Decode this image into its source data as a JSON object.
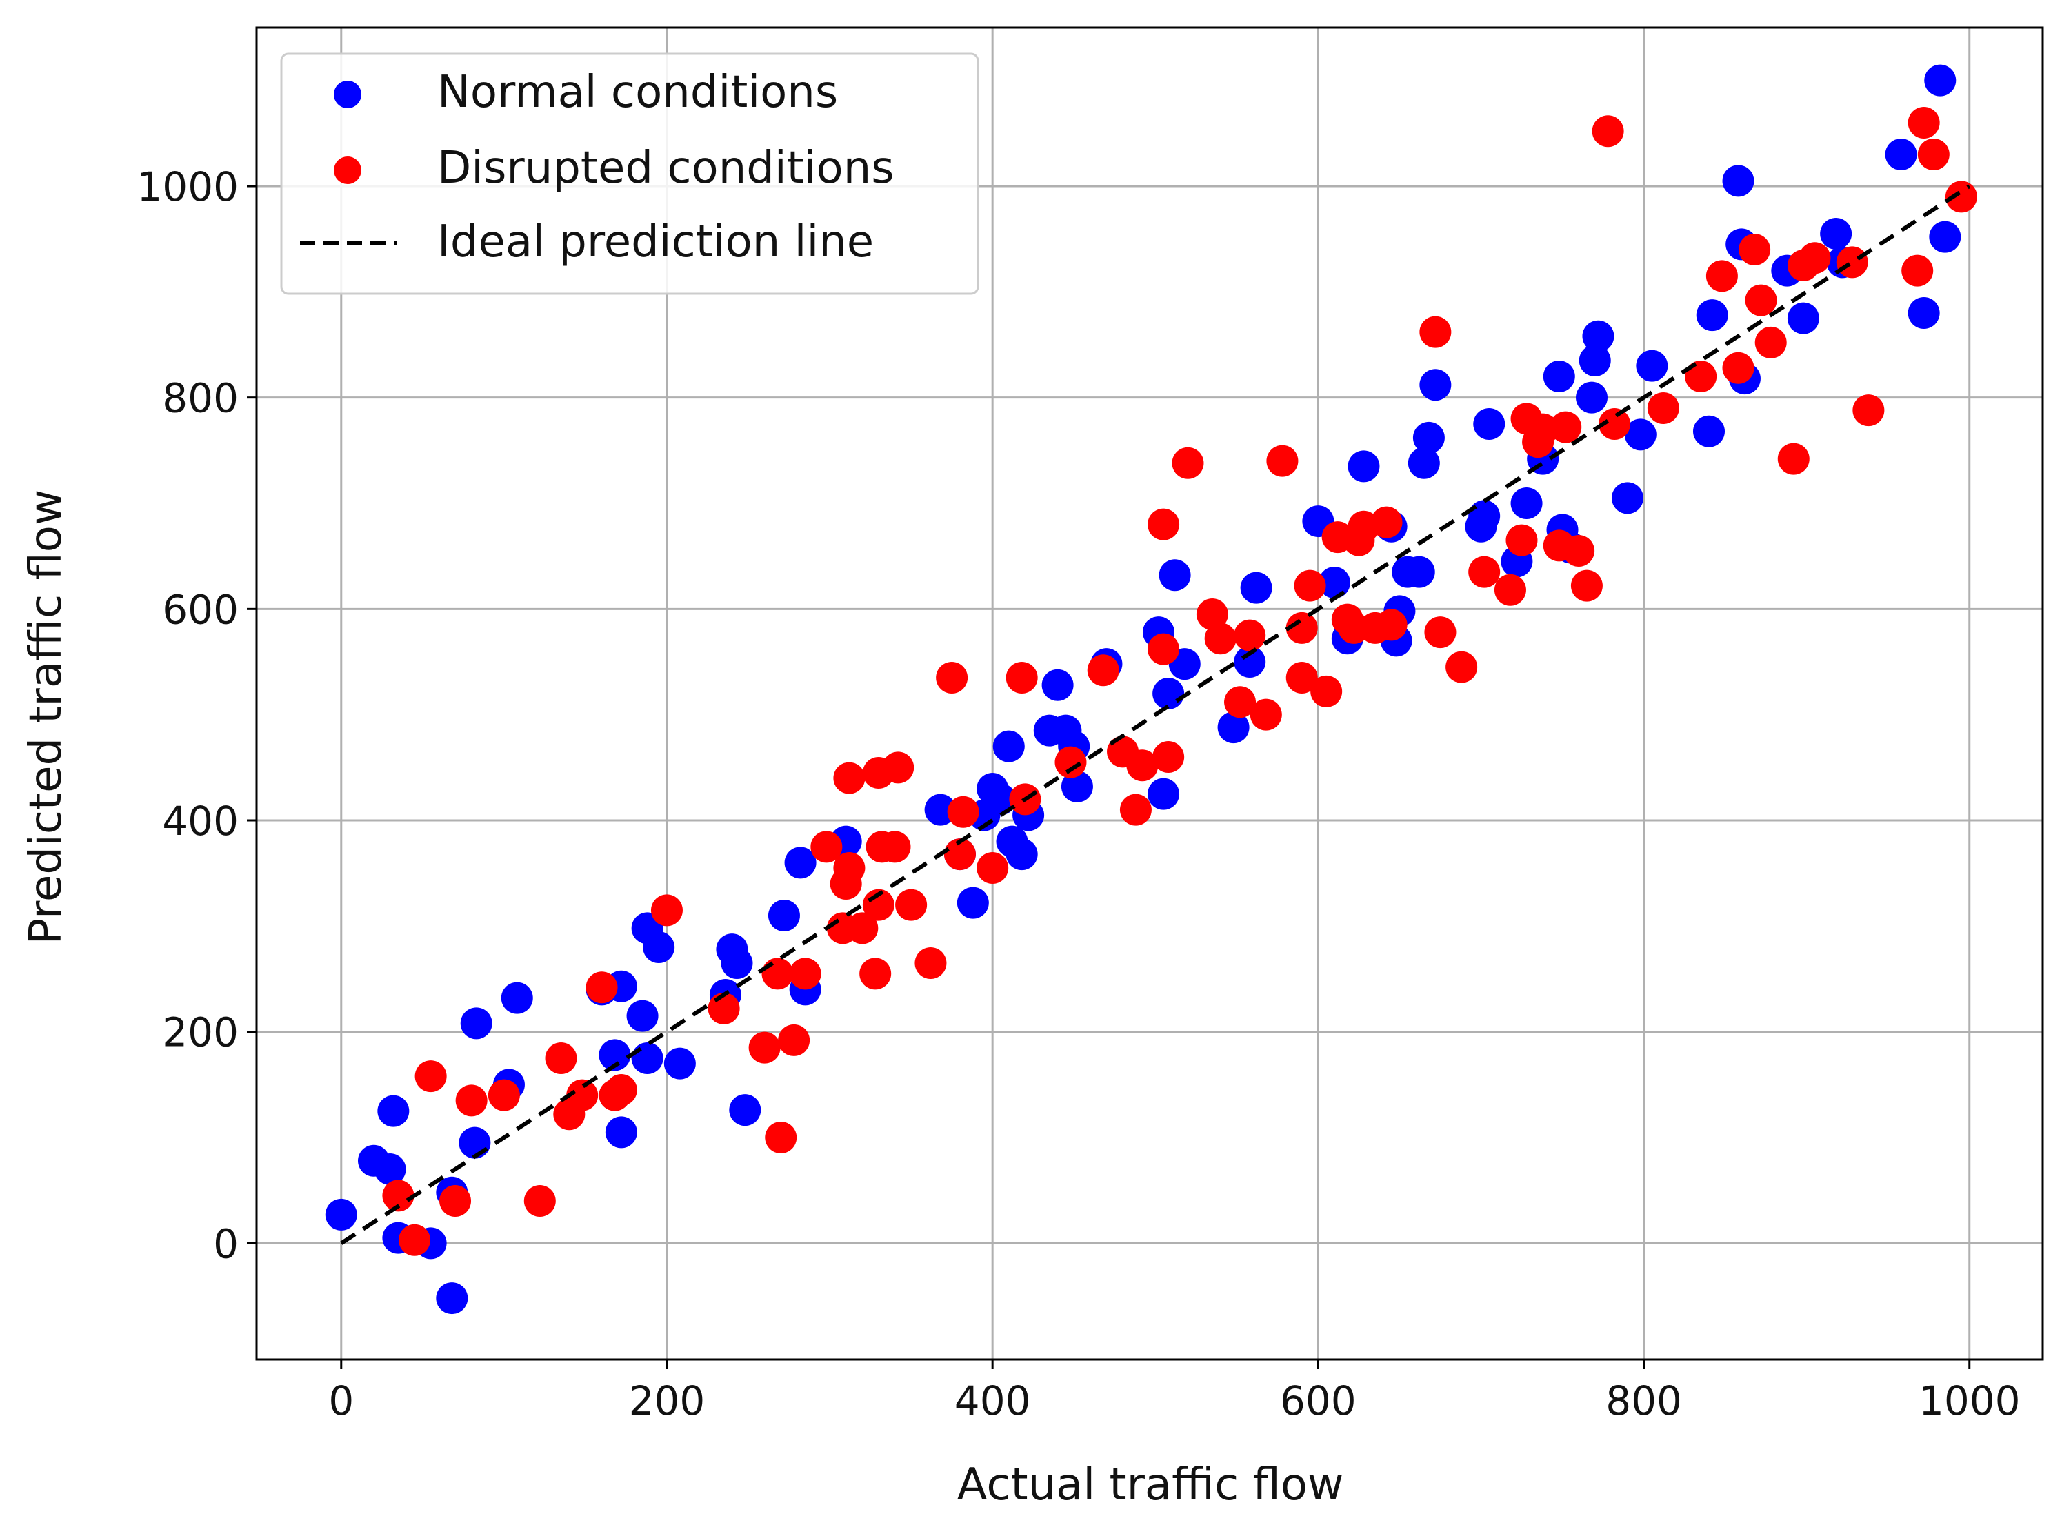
{
  "chart_data": {
    "type": "scatter",
    "title": "",
    "xlabel": "Actual traffic flow",
    "ylabel": "Predicted traffic flow",
    "xlim": [
      -52,
      1045
    ],
    "ylim": [
      -110,
      1150
    ],
    "xticks": [
      0,
      200,
      400,
      600,
      800,
      1000
    ],
    "yticks": [
      0,
      200,
      400,
      600,
      800,
      1000
    ],
    "grid": true,
    "legend_position": "upper-left",
    "series": [
      {
        "name": "Normal conditions",
        "color": "#0000ff",
        "points": [
          [
            0,
            27
          ],
          [
            20,
            78
          ],
          [
            30,
            70
          ],
          [
            32,
            125
          ],
          [
            35,
            5
          ],
          [
            55,
            0
          ],
          [
            68,
            48
          ],
          [
            68,
            -52
          ],
          [
            82,
            95
          ],
          [
            83,
            208
          ],
          [
            103,
            150
          ],
          [
            108,
            232
          ],
          [
            160,
            240
          ],
          [
            168,
            178
          ],
          [
            172,
            243
          ],
          [
            172,
            105
          ],
          [
            185,
            215
          ],
          [
            188,
            175
          ],
          [
            188,
            298
          ],
          [
            195,
            280
          ],
          [
            208,
            170
          ],
          [
            236,
            235
          ],
          [
            240,
            278
          ],
          [
            243,
            265
          ],
          [
            248,
            126
          ],
          [
            272,
            310
          ],
          [
            282,
            360
          ],
          [
            285,
            240
          ],
          [
            310,
            380
          ],
          [
            368,
            410
          ],
          [
            380,
            368
          ],
          [
            388,
            322
          ],
          [
            395,
            405
          ],
          [
            400,
            430
          ],
          [
            405,
            420
          ],
          [
            410,
            470
          ],
          [
            412,
            380
          ],
          [
            418,
            368
          ],
          [
            422,
            405
          ],
          [
            435,
            485
          ],
          [
            440,
            528
          ],
          [
            445,
            485
          ],
          [
            450,
            470
          ],
          [
            452,
            432
          ],
          [
            470,
            548
          ],
          [
            502,
            578
          ],
          [
            505,
            425
          ],
          [
            508,
            520
          ],
          [
            512,
            632
          ],
          [
            518,
            548
          ],
          [
            548,
            488
          ],
          [
            558,
            550
          ],
          [
            562,
            620
          ],
          [
            600,
            683
          ],
          [
            610,
            625
          ],
          [
            618,
            572
          ],
          [
            628,
            735
          ],
          [
            645,
            678
          ],
          [
            648,
            570
          ],
          [
            650,
            598
          ],
          [
            655,
            635
          ],
          [
            662,
            635
          ],
          [
            665,
            738
          ],
          [
            668,
            762
          ],
          [
            672,
            812
          ],
          [
            700,
            678
          ],
          [
            702,
            688
          ],
          [
            705,
            775
          ],
          [
            722,
            645
          ],
          [
            728,
            700
          ],
          [
            738,
            742
          ],
          [
            748,
            820
          ],
          [
            750,
            675
          ],
          [
            755,
            658
          ],
          [
            768,
            800
          ],
          [
            770,
            835
          ],
          [
            772,
            858
          ],
          [
            790,
            705
          ],
          [
            798,
            765
          ],
          [
            805,
            830
          ],
          [
            840,
            768
          ],
          [
            842,
            878
          ],
          [
            858,
            1005
          ],
          [
            860,
            945
          ],
          [
            862,
            818
          ],
          [
            888,
            920
          ],
          [
            898,
            875
          ],
          [
            918,
            955
          ],
          [
            922,
            928
          ],
          [
            958,
            1030
          ],
          [
            972,
            880
          ],
          [
            982,
            1100
          ],
          [
            985,
            952
          ]
        ]
      },
      {
        "name": "Disrupted conditions",
        "color": "#ff0000",
        "points": [
          [
            35,
            45
          ],
          [
            45,
            3
          ],
          [
            55,
            158
          ],
          [
            70,
            40
          ],
          [
            80,
            135
          ],
          [
            100,
            140
          ],
          [
            122,
            40
          ],
          [
            135,
            175
          ],
          [
            140,
            122
          ],
          [
            148,
            140
          ],
          [
            160,
            242
          ],
          [
            168,
            140
          ],
          [
            172,
            145
          ],
          [
            200,
            315
          ],
          [
            235,
            222
          ],
          [
            260,
            185
          ],
          [
            268,
            255
          ],
          [
            270,
            100
          ],
          [
            278,
            192
          ],
          [
            285,
            255
          ],
          [
            298,
            375
          ],
          [
            308,
            298
          ],
          [
            310,
            340
          ],
          [
            312,
            440
          ],
          [
            312,
            355
          ],
          [
            320,
            298
          ],
          [
            328,
            255
          ],
          [
            330,
            445
          ],
          [
            330,
            320
          ],
          [
            332,
            375
          ],
          [
            340,
            375
          ],
          [
            342,
            450
          ],
          [
            350,
            320
          ],
          [
            362,
            265
          ],
          [
            375,
            535
          ],
          [
            380,
            368
          ],
          [
            382,
            408
          ],
          [
            400,
            355
          ],
          [
            418,
            535
          ],
          [
            420,
            420
          ],
          [
            448,
            455
          ],
          [
            468,
            542
          ],
          [
            480,
            465
          ],
          [
            488,
            410
          ],
          [
            492,
            452
          ],
          [
            505,
            680
          ],
          [
            505,
            562
          ],
          [
            508,
            460
          ],
          [
            520,
            738
          ],
          [
            535,
            595
          ],
          [
            540,
            572
          ],
          [
            552,
            512
          ],
          [
            558,
            575
          ],
          [
            568,
            500
          ],
          [
            578,
            740
          ],
          [
            590,
            535
          ],
          [
            590,
            582
          ],
          [
            595,
            622
          ],
          [
            605,
            522
          ],
          [
            612,
            668
          ],
          [
            618,
            590
          ],
          [
            622,
            582
          ],
          [
            625,
            665
          ],
          [
            628,
            678
          ],
          [
            635,
            582
          ],
          [
            642,
            682
          ],
          [
            645,
            585
          ],
          [
            672,
            862
          ],
          [
            675,
            578
          ],
          [
            688,
            545
          ],
          [
            702,
            635
          ],
          [
            718,
            618
          ],
          [
            725,
            665
          ],
          [
            728,
            780
          ],
          [
            735,
            758
          ],
          [
            738,
            770
          ],
          [
            748,
            660
          ],
          [
            752,
            772
          ],
          [
            760,
            655
          ],
          [
            765,
            622
          ],
          [
            778,
            1052
          ],
          [
            782,
            775
          ],
          [
            812,
            790
          ],
          [
            835,
            820
          ],
          [
            848,
            915
          ],
          [
            858,
            828
          ],
          [
            868,
            940
          ],
          [
            872,
            892
          ],
          [
            878,
            852
          ],
          [
            892,
            742
          ],
          [
            898,
            925
          ],
          [
            905,
            932
          ],
          [
            928,
            928
          ],
          [
            938,
            788
          ],
          [
            968,
            920
          ],
          [
            972,
            1060
          ],
          [
            978,
            1030
          ],
          [
            995,
            990
          ]
        ]
      },
      {
        "name": "Ideal prediction line",
        "color": "#000000",
        "line_style": "dashed",
        "points": [
          [
            0,
            0
          ],
          [
            1000,
            1000
          ]
        ]
      }
    ]
  }
}
